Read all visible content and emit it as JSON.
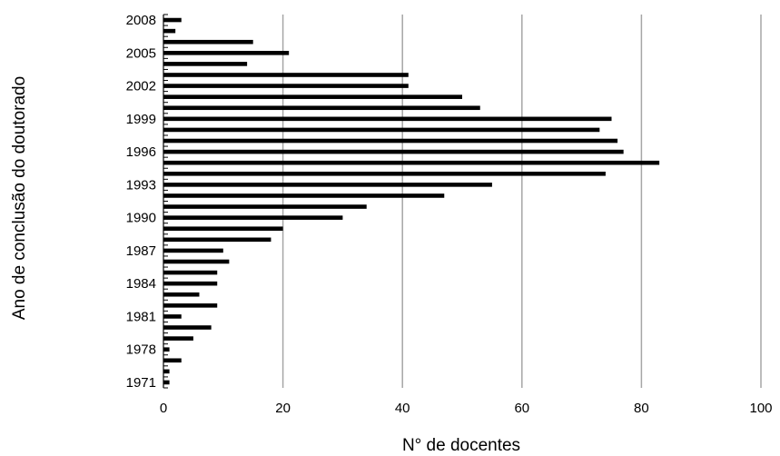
{
  "chart_data": {
    "type": "bar",
    "orientation": "horizontal",
    "title": "",
    "xlabel": "N° de docentes",
    "ylabel": "Ano de conclusão do doutorado",
    "xlim": [
      0,
      100
    ],
    "xticks": [
      0,
      20,
      40,
      60,
      80,
      100
    ],
    "grid": "vertical",
    "legend": "none",
    "bar_color": "#000000",
    "grid_color": "#a6a6a6",
    "categories": [
      "2008",
      "2007",
      "2006",
      "2005",
      "2004",
      "2003",
      "2002",
      "2001",
      "2000",
      "1999",
      "1998",
      "1997",
      "1996",
      "1995",
      "1994",
      "1993",
      "1992",
      "1991",
      "1990",
      "1989",
      "1988",
      "1987",
      "1986",
      "1985",
      "1984",
      "1983",
      "1982",
      "1981",
      "1980",
      "1979",
      "1978",
      "1977",
      "1976",
      "1971"
    ],
    "category_labels": [
      "2008",
      "",
      "",
      "2005",
      "",
      "",
      "2002",
      "",
      "",
      "1999",
      "",
      "",
      "1996",
      "",
      "",
      "1993",
      "",
      "",
      "1990",
      "",
      "",
      "1987",
      "",
      "",
      "1984",
      "",
      "",
      "1981",
      "",
      "",
      "1978",
      "",
      "",
      "1971"
    ],
    "values": [
      3,
      2,
      15,
      21,
      14,
      41,
      41,
      50,
      53,
      75,
      73,
      76,
      77,
      83,
      74,
      55,
      47,
      34,
      30,
      20,
      18,
      10,
      11,
      9,
      9,
      6,
      9,
      3,
      8,
      5,
      1,
      3,
      1,
      1
    ]
  }
}
